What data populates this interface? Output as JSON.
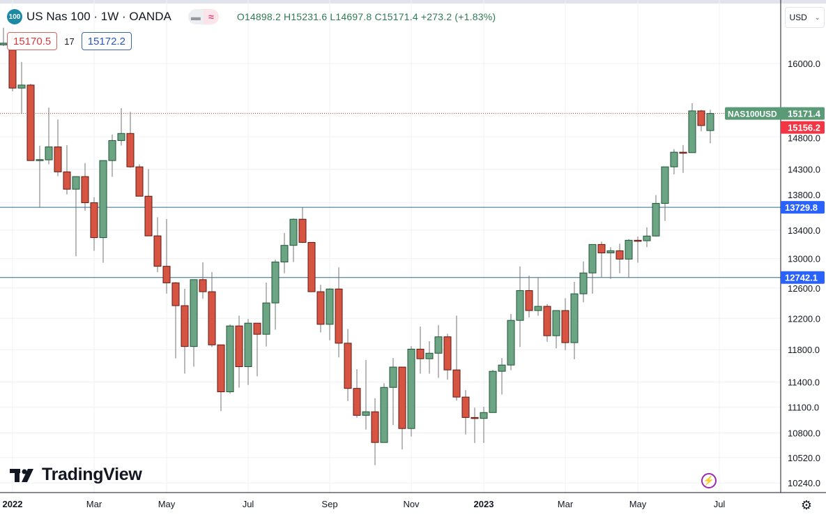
{
  "header": {
    "symbol_badge": "100",
    "title": "US Nas 100 · 1W · OANDA",
    "pill_icons": [
      "minus-icon",
      "approx-icon"
    ],
    "ohlc": "O14898.2 H15231.6 L14697.8 C15171.4 +273.2 (+1.83%)",
    "ohlc_color": "#2f7a55"
  },
  "trade": {
    "sell": "15170.5",
    "spread": "17",
    "buy": "15172.2"
  },
  "currency": {
    "label": "USD"
  },
  "logo": {
    "text": "TradingView"
  },
  "chart_data": {
    "type": "candlestick",
    "symbol": "NAS100USD",
    "interval": "1W",
    "y_scale": "log",
    "ylim": [
      10136,
      17118
    ],
    "y_ticks": [
      "16000.0",
      "14800.0",
      "14300.0",
      "13800.0",
      "13400.0",
      "13000.0",
      "12600.0",
      "12200.0",
      "11800.0",
      "11400.0",
      "11100.0",
      "10800.0",
      "10520.0",
      "10240.0"
    ],
    "x_ticks": [
      {
        "label": "2022",
        "date": "2022-01-03"
      },
      {
        "label": "Mar",
        "date": "2022-03-07"
      },
      {
        "label": "May",
        "date": "2022-05-02"
      },
      {
        "label": "Jul",
        "date": "2022-07-04"
      },
      {
        "label": "Sep",
        "date": "2022-09-05"
      },
      {
        "label": "Nov",
        "date": "2022-11-07"
      },
      {
        "label": "2023",
        "date": "2023-01-02"
      },
      {
        "label": "Mar",
        "date": "2023-03-06"
      },
      {
        "label": "May",
        "date": "2023-05-01"
      },
      {
        "label": "Jul",
        "date": "2023-07-03"
      }
    ],
    "grid": true,
    "colors": {
      "up_fill": "#6ba583",
      "up_border": "#225437",
      "down_fill": "#d75442",
      "down_border": "#5b1a13",
      "hline": "#2d6a8e",
      "last_line": "#b5463b"
    },
    "horizontal_lines": [
      {
        "value": 13729.8,
        "label": "13729.8",
        "color": "#2962ff"
      },
      {
        "value": 12742.1,
        "label": "12742.1",
        "color": "#2962ff"
      }
    ],
    "last_price": {
      "value": 15171.4,
      "symbol_label": "NAS100USD",
      "label": "15171.4",
      "color": "#5a9a77"
    },
    "prev_close": {
      "value": 15156.2,
      "label": "15156.2",
      "color": "#f23645"
    },
    "candles": [
      {
        "d": "2021-12-27",
        "o": 16320,
        "h": 16620,
        "l": 16300,
        "c": 16350
      },
      {
        "d": "2022-01-03",
        "o": 16230,
        "h": 16314,
        "l": 15534,
        "c": 15587
      },
      {
        "d": "2022-01-10",
        "o": 15587,
        "h": 16025,
        "l": 15167,
        "c": 15637
      },
      {
        "d": "2022-01-17",
        "o": 15637,
        "h": 15657,
        "l": 14430,
        "c": 14430
      },
      {
        "d": "2022-01-24",
        "o": 14438,
        "h": 14660,
        "l": 13730,
        "c": 14445
      },
      {
        "d": "2022-01-31",
        "o": 14441,
        "h": 15266,
        "l": 14373,
        "c": 14641
      },
      {
        "d": "2022-02-07",
        "o": 14641,
        "h": 15075,
        "l": 14193,
        "c": 14258
      },
      {
        "d": "2022-02-14",
        "o": 14258,
        "h": 14671,
        "l": 13919,
        "c": 13997
      },
      {
        "d": "2022-02-21",
        "o": 13997,
        "h": 14193,
        "l": 13033,
        "c": 14186
      },
      {
        "d": "2022-02-28",
        "o": 14186,
        "h": 14392,
        "l": 13682,
        "c": 13797
      },
      {
        "d": "2022-03-07",
        "o": 13797,
        "h": 13878,
        "l": 13109,
        "c": 13294
      },
      {
        "d": "2022-03-14",
        "o": 13294,
        "h": 14430,
        "l": 12943,
        "c": 14430
      },
      {
        "d": "2022-03-21",
        "o": 14430,
        "h": 14835,
        "l": 14182,
        "c": 14741
      },
      {
        "d": "2022-03-28",
        "o": 14741,
        "h": 15258,
        "l": 14664,
        "c": 14852
      },
      {
        "d": "2022-04-04",
        "o": 14852,
        "h": 15198,
        "l": 14319,
        "c": 14334
      },
      {
        "d": "2022-04-11",
        "o": 14334,
        "h": 14373,
        "l": 13893,
        "c": 13893
      },
      {
        "d": "2022-04-18",
        "o": 13893,
        "h": 14300,
        "l": 13319,
        "c": 13319
      },
      {
        "d": "2022-04-25",
        "o": 13319,
        "h": 13586,
        "l": 12816,
        "c": 12895
      },
      {
        "d": "2022-05-02",
        "o": 12895,
        "h": 13561,
        "l": 12525,
        "c": 12670
      },
      {
        "d": "2022-05-09",
        "o": 12670,
        "h": 12680,
        "l": 11692,
        "c": 12366
      },
      {
        "d": "2022-05-16",
        "o": 12366,
        "h": 12590,
        "l": 11503,
        "c": 11840
      },
      {
        "d": "2022-05-23",
        "o": 11840,
        "h": 12713,
        "l": 11589,
        "c": 12713
      },
      {
        "d": "2022-05-30",
        "o": 12713,
        "h": 12951,
        "l": 12457,
        "c": 12551
      },
      {
        "d": "2022-06-06",
        "o": 12551,
        "h": 12816,
        "l": 11834,
        "c": 11861
      },
      {
        "d": "2022-06-13",
        "o": 11861,
        "h": 11861,
        "l": 11054,
        "c": 11283
      },
      {
        "d": "2022-06-20",
        "o": 11283,
        "h": 12123,
        "l": 11261,
        "c": 12102
      },
      {
        "d": "2022-06-27",
        "o": 12102,
        "h": 12236,
        "l": 11333,
        "c": 11589
      },
      {
        "d": "2022-07-04",
        "o": 11589,
        "h": 12192,
        "l": 11366,
        "c": 12138
      },
      {
        "d": "2022-07-11",
        "o": 12138,
        "h": 12138,
        "l": 11472,
        "c": 11995
      },
      {
        "d": "2022-07-18",
        "o": 11995,
        "h": 12674,
        "l": 11840,
        "c": 12402
      },
      {
        "d": "2022-07-25",
        "o": 12402,
        "h": 12987,
        "l": 12054,
        "c": 12954
      },
      {
        "d": "2022-08-01",
        "o": 12954,
        "h": 13361,
        "l": 12800,
        "c": 13185
      },
      {
        "d": "2022-08-08",
        "o": 13185,
        "h": 13567,
        "l": 12954,
        "c": 13557
      },
      {
        "d": "2022-08-15",
        "o": 13557,
        "h": 13728,
        "l": 13217,
        "c": 13227
      },
      {
        "d": "2022-08-22",
        "o": 13227,
        "h": 13227,
        "l": 12551,
        "c": 12551
      },
      {
        "d": "2022-08-29",
        "o": 12551,
        "h": 12643,
        "l": 12018,
        "c": 12123
      },
      {
        "d": "2022-09-05",
        "o": 12123,
        "h": 12596,
        "l": 11919,
        "c": 12587
      },
      {
        "d": "2022-09-12",
        "o": 12587,
        "h": 12880,
        "l": 11704,
        "c": 11882
      },
      {
        "d": "2022-09-19",
        "o": 11882,
        "h": 12063,
        "l": 11173,
        "c": 11324
      },
      {
        "d": "2022-09-26",
        "o": 11324,
        "h": 11558,
        "l": 10976,
        "c": 11004
      },
      {
        "d": "2022-10-03",
        "o": 11004,
        "h": 11672,
        "l": 10839,
        "c": 11046
      },
      {
        "d": "2022-10-10",
        "o": 11046,
        "h": 11206,
        "l": 10436,
        "c": 10691
      },
      {
        "d": "2022-10-17",
        "o": 10691,
        "h": 11386,
        "l": 10691,
        "c": 11336
      },
      {
        "d": "2022-10-24",
        "o": 11336,
        "h": 11696,
        "l": 10891,
        "c": 11584
      },
      {
        "d": "2022-10-31",
        "o": 11584,
        "h": 11584,
        "l": 10611,
        "c": 10851
      },
      {
        "d": "2022-11-07",
        "o": 10851,
        "h": 11846,
        "l": 10759,
        "c": 11807
      },
      {
        "d": "2022-11-14",
        "o": 11807,
        "h": 12093,
        "l": 11503,
        "c": 11687
      },
      {
        "d": "2022-11-21",
        "o": 11687,
        "h": 11908,
        "l": 11503,
        "c": 11756
      },
      {
        "d": "2022-11-28",
        "o": 11756,
        "h": 12114,
        "l": 11451,
        "c": 11963
      },
      {
        "d": "2022-12-05",
        "o": 11963,
        "h": 12002,
        "l": 11429,
        "c": 11549
      },
      {
        "d": "2022-12-12",
        "o": 11549,
        "h": 12236,
        "l": 11178,
        "c": 11220
      },
      {
        "d": "2022-12-19",
        "o": 11220,
        "h": 11303,
        "l": 10783,
        "c": 10979
      },
      {
        "d": "2022-12-26",
        "o": 10979,
        "h": 11095,
        "l": 10685,
        "c": 10968
      },
      {
        "d": "2023-01-02",
        "o": 10968,
        "h": 11104,
        "l": 10685,
        "c": 11037
      },
      {
        "d": "2023-01-09",
        "o": 11037,
        "h": 11549,
        "l": 11037,
        "c": 11532
      },
      {
        "d": "2023-01-16",
        "o": 11532,
        "h": 11696,
        "l": 11250,
        "c": 11609
      },
      {
        "d": "2023-01-23",
        "o": 11609,
        "h": 12257,
        "l": 11546,
        "c": 12174
      },
      {
        "d": "2023-01-30",
        "o": 12174,
        "h": 12893,
        "l": 11834,
        "c": 12566
      },
      {
        "d": "2023-02-06",
        "o": 12566,
        "h": 12768,
        "l": 12213,
        "c": 12302
      },
      {
        "d": "2023-02-13",
        "o": 12302,
        "h": 12746,
        "l": 12233,
        "c": 12357
      },
      {
        "d": "2023-02-20",
        "o": 12357,
        "h": 12386,
        "l": 11900,
        "c": 11977
      },
      {
        "d": "2023-02-27",
        "o": 11977,
        "h": 12302,
        "l": 11816,
        "c": 12302
      },
      {
        "d": "2023-03-06",
        "o": 12302,
        "h": 12464,
        "l": 11795,
        "c": 11889
      },
      {
        "d": "2023-03-13",
        "o": 11889,
        "h": 12683,
        "l": 11680,
        "c": 12523
      },
      {
        "d": "2023-03-20",
        "o": 12523,
        "h": 12961,
        "l": 12411,
        "c": 12804
      },
      {
        "d": "2023-03-27",
        "o": 12804,
        "h": 13198,
        "l": 12525,
        "c": 13198
      },
      {
        "d": "2023-04-03",
        "o": 13198,
        "h": 13237,
        "l": 12742,
        "c": 13080
      },
      {
        "d": "2023-04-10",
        "o": 13080,
        "h": 13160,
        "l": 12723,
        "c": 13110
      },
      {
        "d": "2023-04-17",
        "o": 13110,
        "h": 13208,
        "l": 12800,
        "c": 12994
      },
      {
        "d": "2023-04-24",
        "o": 12994,
        "h": 13273,
        "l": 12736,
        "c": 13257
      },
      {
        "d": "2023-05-01",
        "o": 13257,
        "h": 13310,
        "l": 12945,
        "c": 13250
      },
      {
        "d": "2023-05-08",
        "o": 13250,
        "h": 13441,
        "l": 13160,
        "c": 13317
      },
      {
        "d": "2023-05-15",
        "o": 13317,
        "h": 13910,
        "l": 13307,
        "c": 13787
      },
      {
        "d": "2023-05-22",
        "o": 13787,
        "h": 14334,
        "l": 13533,
        "c": 14334
      },
      {
        "d": "2023-05-29",
        "o": 14334,
        "h": 14606,
        "l": 14222,
        "c": 14559
      },
      {
        "d": "2023-06-05",
        "o": 14559,
        "h": 14670,
        "l": 14243,
        "c": 14552
      },
      {
        "d": "2023-06-12",
        "o": 14552,
        "h": 15337,
        "l": 14552,
        "c": 15213
      },
      {
        "d": "2023-06-19",
        "o": 15213,
        "h": 15230,
        "l": 14885,
        "c": 14978
      },
      {
        "d": "2023-06-26",
        "o": 14898.2,
        "h": 15231.6,
        "l": 14697.8,
        "c": 15171.4
      }
    ]
  }
}
